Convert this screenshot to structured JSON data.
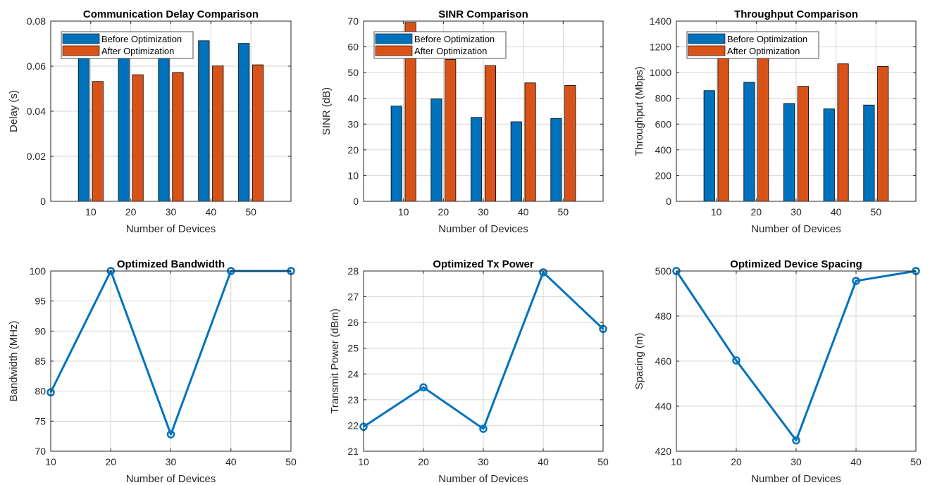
{
  "colors": {
    "before": "#0072BD",
    "after": "#D95319",
    "line": "#0072BD",
    "grid": "#d4d4d4"
  },
  "chart_data": [
    {
      "type": "bar",
      "title": "Communication Delay Comparison",
      "xlabel": "Number of Devices",
      "ylabel": "Delay (s)",
      "categories": [
        "10",
        "20",
        "30",
        "40",
        "50"
      ],
      "ylim": [
        0,
        0.08
      ],
      "yticks": [
        "0",
        "0.02",
        "0.04",
        "0.06",
        "0.08"
      ],
      "grid": true,
      "legend": "top-left",
      "series": [
        {
          "name": "Before Optimization",
          "values": [
            0.068,
            0.068,
            0.068,
            0.0713,
            0.0701
          ]
        },
        {
          "name": "After Optimization",
          "values": [
            0.0532,
            0.0562,
            0.0572,
            0.0601,
            0.0606
          ]
        }
      ]
    },
    {
      "type": "bar",
      "title": "SINR Comparison",
      "xlabel": "Number of Devices",
      "ylabel": "SINR (dB)",
      "categories": [
        "10",
        "20",
        "30",
        "40",
        "50"
      ],
      "ylim": [
        0,
        70
      ],
      "yticks": [
        "0",
        "10",
        "20",
        "30",
        "40",
        "50",
        "60",
        "70"
      ],
      "grid": true,
      "legend": "top-left",
      "series": [
        {
          "name": "Before Optimization",
          "values": [
            37.0,
            39.8,
            32.6,
            30.9,
            32.2
          ]
        },
        {
          "name": "After Optimization",
          "values": [
            69.5,
            55.1,
            52.7,
            46.0,
            45.0
          ]
        }
      ]
    },
    {
      "type": "bar",
      "title": "Throughput Comparison",
      "xlabel": "Number of Devices",
      "ylabel": "Throughput (Mbps)",
      "categories": [
        "10",
        "20",
        "30",
        "40",
        "50"
      ],
      "ylim": [
        0,
        1400
      ],
      "yticks": [
        "0",
        "200",
        "400",
        "600",
        "800",
        "1000",
        "1200",
        "1400"
      ],
      "grid": true,
      "legend": "top-left",
      "series": [
        {
          "name": "Before Optimization",
          "values": [
            860,
            925,
            760,
            718,
            748
          ]
        },
        {
          "name": "After Optimization",
          "values": [
            1160,
            1140,
            893,
            1068,
            1048
          ]
        }
      ]
    },
    {
      "type": "line",
      "title": "Optimized Bandwidth",
      "xlabel": "Number of Devices",
      "ylabel": "Bandwidth (MHz)",
      "x": [
        10,
        20,
        30,
        40,
        50
      ],
      "xticks": [
        "10",
        "20",
        "30",
        "40",
        "50"
      ],
      "xlim": [
        10,
        50
      ],
      "ylim": [
        70,
        100
      ],
      "yticks": [
        "70",
        "75",
        "80",
        "85",
        "90",
        "95",
        "100"
      ],
      "grid": true,
      "values": [
        79.8,
        100,
        72.8,
        100,
        100
      ]
    },
    {
      "type": "line",
      "title": "Optimized Tx Power",
      "xlabel": "Number of Devices",
      "ylabel": "Transmit Power (dBm)",
      "x": [
        10,
        20,
        30,
        40,
        50
      ],
      "xticks": [
        "10",
        "20",
        "30",
        "40",
        "50"
      ],
      "xlim": [
        10,
        50
      ],
      "ylim": [
        21,
        28
      ],
      "yticks": [
        "21",
        "22",
        "23",
        "24",
        "25",
        "26",
        "27",
        "28"
      ],
      "grid": true,
      "values": [
        21.95,
        23.48,
        21.87,
        27.95,
        25.75
      ]
    },
    {
      "type": "line",
      "title": "Optimized Device Spacing",
      "xlabel": "Number of Devices",
      "ylabel": "Spacing (m)",
      "x": [
        10,
        20,
        30,
        40,
        50
      ],
      "xticks": [
        "10",
        "20",
        "30",
        "40",
        "50"
      ],
      "xlim": [
        10,
        50
      ],
      "ylim": [
        420,
        500
      ],
      "yticks": [
        "420",
        "440",
        "460",
        "480",
        "500"
      ],
      "grid": true,
      "values": [
        500,
        460.3,
        424.8,
        495.6,
        500
      ]
    }
  ]
}
